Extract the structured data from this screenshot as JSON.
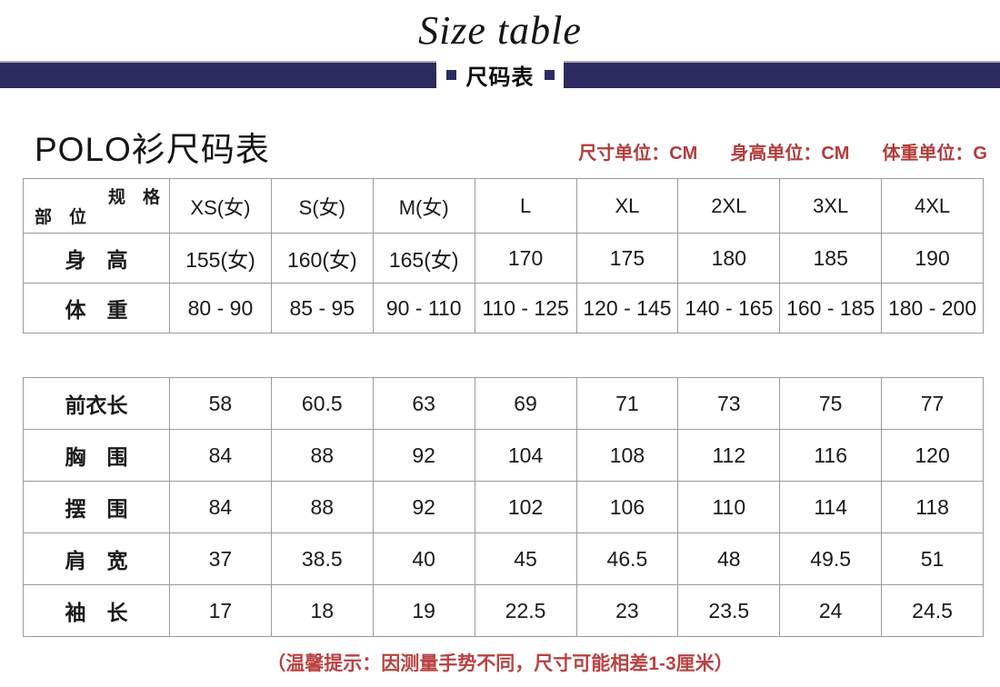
{
  "page": {
    "title": "Size table",
    "banner_label": "尺码表",
    "product_title": "POLO衫尺码表",
    "units": [
      "尺寸单位：CM",
      "身高单位：CM",
      "体重单位：G"
    ],
    "note": "（温馨提示：因测量手势不同，尺寸可能相差1-3厘米）"
  },
  "colors": {
    "navy_banner": "#2b2b60",
    "pink_cell": "#f3e2e2",
    "black_cell": "#000000",
    "red_text": "#b23c3c"
  },
  "chart_data": {
    "type": "table",
    "title": "POLO衫尺码表",
    "corner": {
      "top_right": "规　格",
      "bottom_left": "部　位"
    },
    "columns": [
      "XS(女)",
      "S(女)",
      "M(女)",
      "L",
      "XL",
      "2XL",
      "3XL",
      "4XL"
    ],
    "rows_top": [
      {
        "label": "身　高",
        "values": [
          "155(女)",
          "160(女)",
          "165(女)",
          "170",
          "175",
          "180",
          "185",
          "190"
        ]
      },
      {
        "label": "体　重",
        "values": [
          "80 - 90",
          "85 - 95",
          "90 - 110",
          "110 - 125",
          "120 - 145",
          "140 - 165",
          "160 - 185",
          "180 - 200"
        ]
      }
    ],
    "rows_bottom": [
      {
        "label": "前衣长",
        "values": [
          "58",
          "60.5",
          "63",
          "69",
          "71",
          "73",
          "75",
          "77"
        ]
      },
      {
        "label": "胸　围",
        "values": [
          "84",
          "88",
          "92",
          "104",
          "108",
          "112",
          "116",
          "120"
        ]
      },
      {
        "label": "摆　围",
        "values": [
          "84",
          "88",
          "92",
          "102",
          "106",
          "110",
          "114",
          "118"
        ]
      },
      {
        "label": "肩　宽",
        "values": [
          "37",
          "38.5",
          "40",
          "45",
          "46.5",
          "48",
          "49.5",
          "51"
        ]
      },
      {
        "label": "袖　长",
        "values": [
          "17",
          "18",
          "19",
          "22.5",
          "23",
          "23.5",
          "24",
          "24.5"
        ]
      }
    ]
  }
}
